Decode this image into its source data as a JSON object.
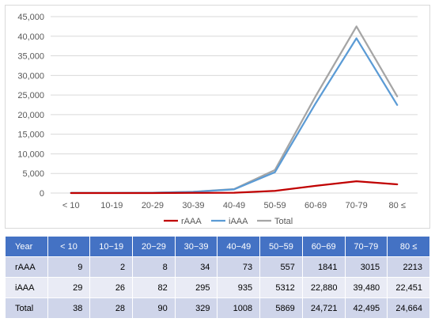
{
  "chart_data": {
    "type": "line",
    "categories": [
      "< 10",
      "10-19",
      "20-29",
      "30-39",
      "40-49",
      "50-59",
      "60-69",
      "70-79",
      "80 ≤"
    ],
    "ylim": [
      0,
      45000
    ],
    "yticks": [
      "0",
      "5,000",
      "10,000",
      "15,000",
      "20,000",
      "25,000",
      "30,000",
      "35,000",
      "40,000",
      "45,000"
    ],
    "ytick_values": [
      0,
      5000,
      10000,
      15000,
      20000,
      25000,
      30000,
      35000,
      40000,
      45000
    ],
    "grid": true,
    "legend_position": "bottom",
    "series": [
      {
        "name": "rAAA",
        "color": "#c00000",
        "values": [
          9,
          2,
          8,
          34,
          73,
          557,
          1841,
          3015,
          2213
        ]
      },
      {
        "name": "iAAA",
        "color": "#5b9bd5",
        "values": [
          29,
          26,
          82,
          295,
          935,
          5312,
          22880,
          39480,
          22451
        ]
      },
      {
        "name": "Total",
        "color": "#a5a5a5",
        "values": [
          38,
          28,
          90,
          329,
          1008,
          5869,
          24721,
          42495,
          24664
        ]
      }
    ]
  },
  "table": {
    "header": [
      "Year",
      "< 10",
      "10−19",
      "20−29",
      "30−39",
      "40−49",
      "50−59",
      "60−69",
      "70−79",
      "80 ≤"
    ],
    "rows": [
      [
        "rAAA",
        "9",
        "2",
        "8",
        "34",
        "73",
        "557",
        "1841",
        "3015",
        "2213"
      ],
      [
        "iAAA",
        "29",
        "26",
        "82",
        "295",
        "935",
        "5312",
        "22,880",
        "39,480",
        "22,451"
      ],
      [
        "Total",
        "38",
        "28",
        "90",
        "329",
        "1008",
        "5869",
        "24,721",
        "42,495",
        "24,664"
      ]
    ]
  }
}
